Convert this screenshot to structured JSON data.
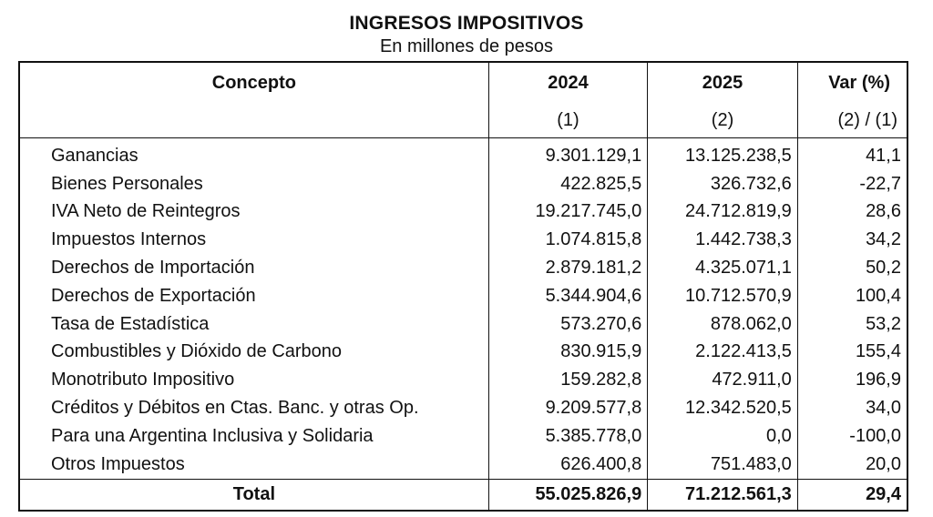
{
  "title": "INGRESOS IMPOSITIVOS",
  "subtitle": "En millones de pesos",
  "table": {
    "headers": [
      "Concepto",
      "2024",
      "2025",
      "Var (%)"
    ],
    "subheaders": [
      "",
      "(1)",
      "(2)",
      "(2) / (1)"
    ],
    "rows": [
      {
        "concept": "Ganancias",
        "v2024": "9.301.129,1",
        "v2025": "13.125.238,5",
        "var": "41,1"
      },
      {
        "concept": "Bienes Personales",
        "v2024": "422.825,5",
        "v2025": "326.732,6",
        "var": "-22,7"
      },
      {
        "concept": "IVA Neto de Reintegros",
        "v2024": "19.217.745,0",
        "v2025": "24.712.819,9",
        "var": "28,6"
      },
      {
        "concept": "Impuestos Internos",
        "v2024": "1.074.815,8",
        "v2025": "1.442.738,3",
        "var": "34,2"
      },
      {
        "concept": "Derechos de Importación",
        "v2024": "2.879.181,2",
        "v2025": "4.325.071,1",
        "var": "50,2"
      },
      {
        "concept": "Derechos de Exportación",
        "v2024": "5.344.904,6",
        "v2025": "10.712.570,9",
        "var": "100,4"
      },
      {
        "concept": "Tasa de Estadística",
        "v2024": "573.270,6",
        "v2025": "878.062,0",
        "var": "53,2"
      },
      {
        "concept": "Combustibles y Dióxido de Carbono",
        "v2024": "830.915,9",
        "v2025": "2.122.413,5",
        "var": "155,4"
      },
      {
        "concept": "Monotributo Impositivo",
        "v2024": "159.282,8",
        "v2025": "472.911,0",
        "var": "196,9"
      },
      {
        "concept": "Créditos y Débitos en Ctas. Banc. y otras Op.",
        "v2024": "9.209.577,8",
        "v2025": "12.342.520,5",
        "var": "34,0"
      },
      {
        "concept": "Para una Argentina Inclusiva y Solidaria",
        "v2024": "5.385.778,0",
        "v2025": "0,0",
        "var": "-100,0"
      },
      {
        "concept": "Otros Impuestos",
        "v2024": "626.400,8",
        "v2025": "751.483,0",
        "var": "20,0"
      }
    ],
    "total": {
      "concept": "Total",
      "v2024": "55.025.826,9",
      "v2025": "71.212.561,3",
      "var": "29,4"
    }
  }
}
